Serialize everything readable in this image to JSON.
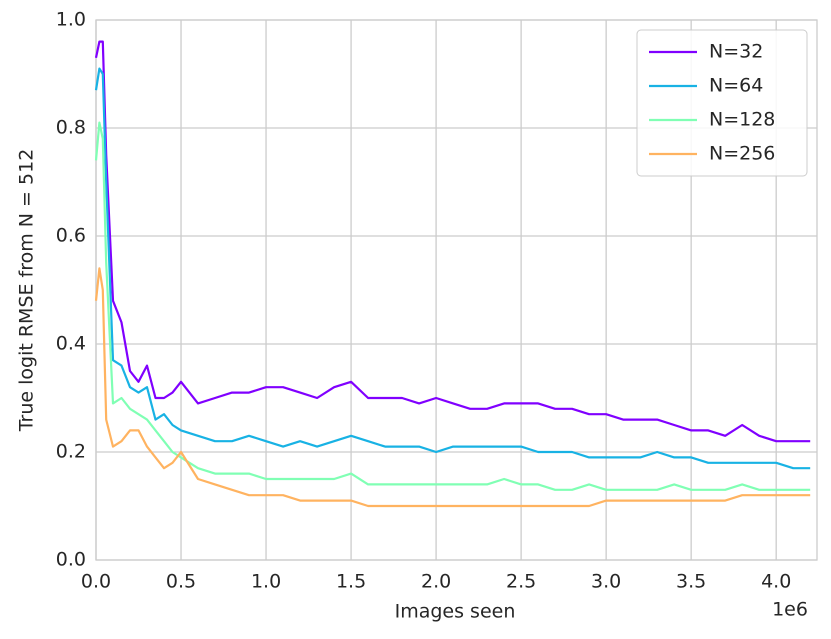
{
  "chart_data": {
    "type": "line",
    "xlabel": "Images seen",
    "ylabel": "True logit RMSE from N = 512",
    "x_offset_label": "1e6",
    "x": [
      0,
      0.02,
      0.04,
      0.06,
      0.1,
      0.15,
      0.2,
      0.25,
      0.3,
      0.35,
      0.4,
      0.45,
      0.5,
      0.6,
      0.7,
      0.8,
      0.9,
      1.0,
      1.1,
      1.2,
      1.3,
      1.4,
      1.5,
      1.6,
      1.7,
      1.8,
      1.9,
      2.0,
      2.1,
      2.2,
      2.3,
      2.4,
      2.5,
      2.6,
      2.7,
      2.8,
      2.9,
      3.0,
      3.1,
      3.2,
      3.3,
      3.4,
      3.5,
      3.6,
      3.7,
      3.8,
      3.9,
      4.0,
      4.1,
      4.2
    ],
    "series": [
      {
        "name": "N=32",
        "color": "#8000ff",
        "values": [
          0.93,
          0.96,
          0.96,
          0.75,
          0.48,
          0.44,
          0.35,
          0.33,
          0.36,
          0.3,
          0.3,
          0.31,
          0.33,
          0.29,
          0.3,
          0.31,
          0.31,
          0.32,
          0.32,
          0.31,
          0.3,
          0.32,
          0.33,
          0.3,
          0.3,
          0.3,
          0.29,
          0.3,
          0.29,
          0.28,
          0.28,
          0.29,
          0.29,
          0.29,
          0.28,
          0.28,
          0.27,
          0.27,
          0.26,
          0.26,
          0.26,
          0.25,
          0.24,
          0.24,
          0.23,
          0.25,
          0.23,
          0.22,
          0.22,
          0.22
        ]
      },
      {
        "name": "N=64",
        "color": "#18b2e4",
        "values": [
          0.87,
          0.91,
          0.9,
          0.7,
          0.37,
          0.36,
          0.32,
          0.31,
          0.32,
          0.26,
          0.27,
          0.25,
          0.24,
          0.23,
          0.22,
          0.22,
          0.23,
          0.22,
          0.21,
          0.22,
          0.21,
          0.22,
          0.23,
          0.22,
          0.21,
          0.21,
          0.21,
          0.2,
          0.21,
          0.21,
          0.21,
          0.21,
          0.21,
          0.2,
          0.2,
          0.2,
          0.19,
          0.19,
          0.19,
          0.19,
          0.2,
          0.19,
          0.19,
          0.18,
          0.18,
          0.18,
          0.18,
          0.18,
          0.17,
          0.17
        ]
      },
      {
        "name": "N=128",
        "color": "#80ffb4",
        "values": [
          0.74,
          0.81,
          0.78,
          0.55,
          0.29,
          0.3,
          0.28,
          0.27,
          0.26,
          0.24,
          0.22,
          0.2,
          0.19,
          0.17,
          0.16,
          0.16,
          0.16,
          0.15,
          0.15,
          0.15,
          0.15,
          0.15,
          0.16,
          0.14,
          0.14,
          0.14,
          0.14,
          0.14,
          0.14,
          0.14,
          0.14,
          0.15,
          0.14,
          0.14,
          0.13,
          0.13,
          0.14,
          0.13,
          0.13,
          0.13,
          0.13,
          0.14,
          0.13,
          0.13,
          0.13,
          0.14,
          0.13,
          0.13,
          0.13,
          0.13
        ]
      },
      {
        "name": "N=256",
        "color": "#ffb360",
        "values": [
          0.48,
          0.54,
          0.5,
          0.26,
          0.21,
          0.22,
          0.24,
          0.24,
          0.21,
          0.19,
          0.17,
          0.18,
          0.2,
          0.15,
          0.14,
          0.13,
          0.12,
          0.12,
          0.12,
          0.11,
          0.11,
          0.11,
          0.11,
          0.1,
          0.1,
          0.1,
          0.1,
          0.1,
          0.1,
          0.1,
          0.1,
          0.1,
          0.1,
          0.1,
          0.1,
          0.1,
          0.1,
          0.11,
          0.11,
          0.11,
          0.11,
          0.11,
          0.11,
          0.11,
          0.11,
          0.12,
          0.12,
          0.12,
          0.12,
          0.12
        ]
      }
    ],
    "xlim": [
      0,
      4.24
    ],
    "ylim": [
      0,
      1
    ],
    "xticks": [
      {
        "value": 0,
        "label": "0.0"
      },
      0.5,
      {
        "value": 1,
        "label": "1.0"
      },
      1.5,
      {
        "value": 2,
        "label": "2.0"
      },
      2.5,
      {
        "value": 3,
        "label": "3.0"
      },
      3.5,
      {
        "value": 4,
        "label": "4.0"
      }
    ],
    "yticks": [
      {
        "value": 0,
        "label": "0.0"
      },
      0.2,
      0.4,
      0.6,
      0.8,
      {
        "value": 1,
        "label": "1.0"
      }
    ],
    "grid": true,
    "legend": "upper right"
  }
}
